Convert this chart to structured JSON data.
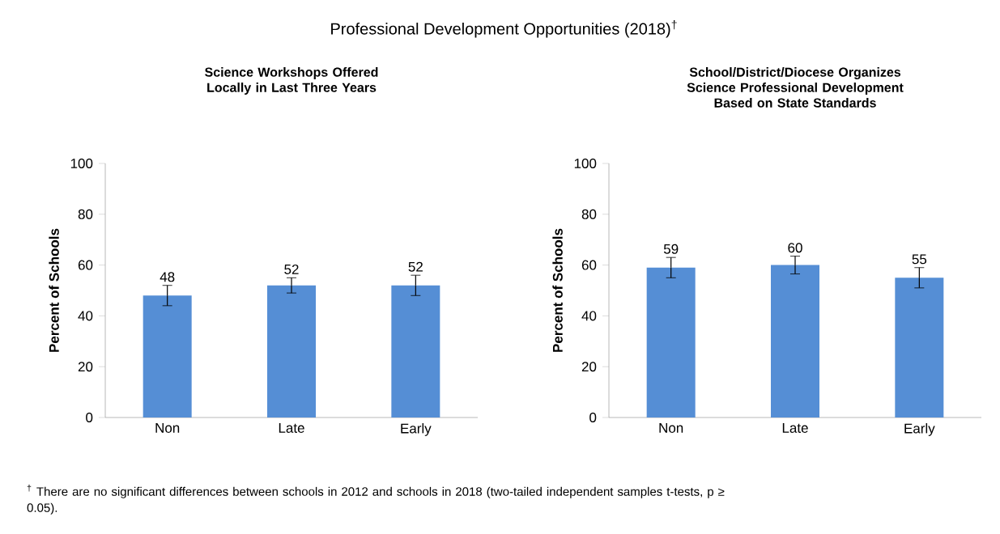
{
  "chart_data": [
    {
      "type": "bar",
      "title": "Science Workshops Offered\nLocally in Last Three Years",
      "ylabel": "Percent of Schools",
      "categories": [
        "Non",
        "Late",
        "Early"
      ],
      "values": [
        48,
        52,
        52
      ],
      "errors": [
        4,
        3,
        4
      ],
      "color": "#558ed5",
      "ylim": [
        0,
        100
      ],
      "yticks": [
        0,
        20,
        40,
        60,
        80,
        100
      ],
      "data_labels": true,
      "annotations": [
        "Professional Development Opportunities (2018)$^{†}$"
      ]
    },
    {
      "type": "bar",
      "title": "School/District/Diocese Organizes\nScience Professional Development\nBased on State Standards",
      "ylabel": "Percent of Schools",
      "categories": [
        "Non",
        "Late",
        "Early"
      ],
      "values": [
        59,
        60,
        55
      ],
      "errors": [
        4,
        3.5,
        4
      ],
      "color": "#558ed5",
      "ylim": [
        0,
        100
      ],
      "yticks": [
        0,
        20,
        40,
        60,
        80,
        100
      ],
      "data_labels": true,
      "annotations": [
        "$^{†}$  There are no significant differences between schools in 2012 and schools in 2018 (two-tailed independent samples t-tests, p ≥ 0.05)."
      ]
    }
  ]
}
